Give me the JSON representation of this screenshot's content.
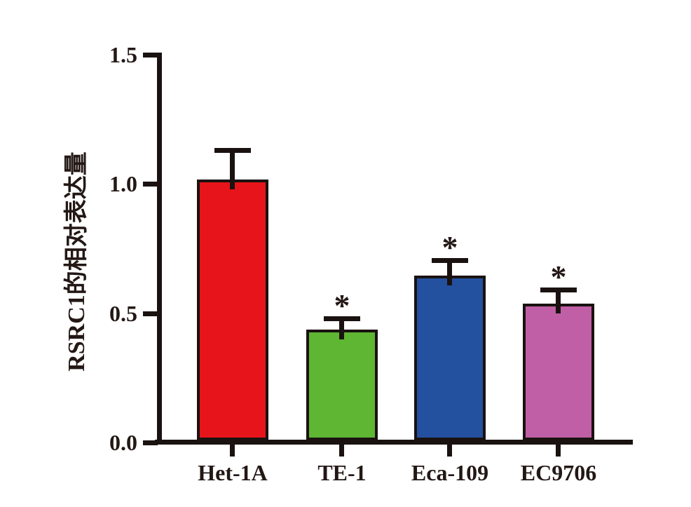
{
  "figure": {
    "background": "#ffffff",
    "axis_color": "#1a1210",
    "text_color": "#231815"
  },
  "chart_data": {
    "type": "bar",
    "title": "",
    "xlabel": "",
    "ylabel": "RSRC1的相对表达量",
    "ylim": [
      0,
      1.5
    ],
    "yticks": [
      0,
      0.5,
      1.0,
      1.5
    ],
    "ytick_labels": [
      "0.0",
      "0.5",
      "1.0",
      "1.5"
    ],
    "categories": [
      "Het-1A",
      "TE-1",
      "Eca-109",
      "EC9706"
    ],
    "values": [
      1.0,
      0.42,
      0.63,
      0.52
    ],
    "errors": [
      0.13,
      0.06,
      0.075,
      0.07
    ],
    "error_bar_style": "upper-half-T-cap",
    "significance": [
      "",
      "*",
      "*",
      "*"
    ],
    "bar_colors": [
      "#e8141b",
      "#5eb632",
      "#2450a0",
      "#c05fa6"
    ],
    "grid": false,
    "legend": "none"
  }
}
